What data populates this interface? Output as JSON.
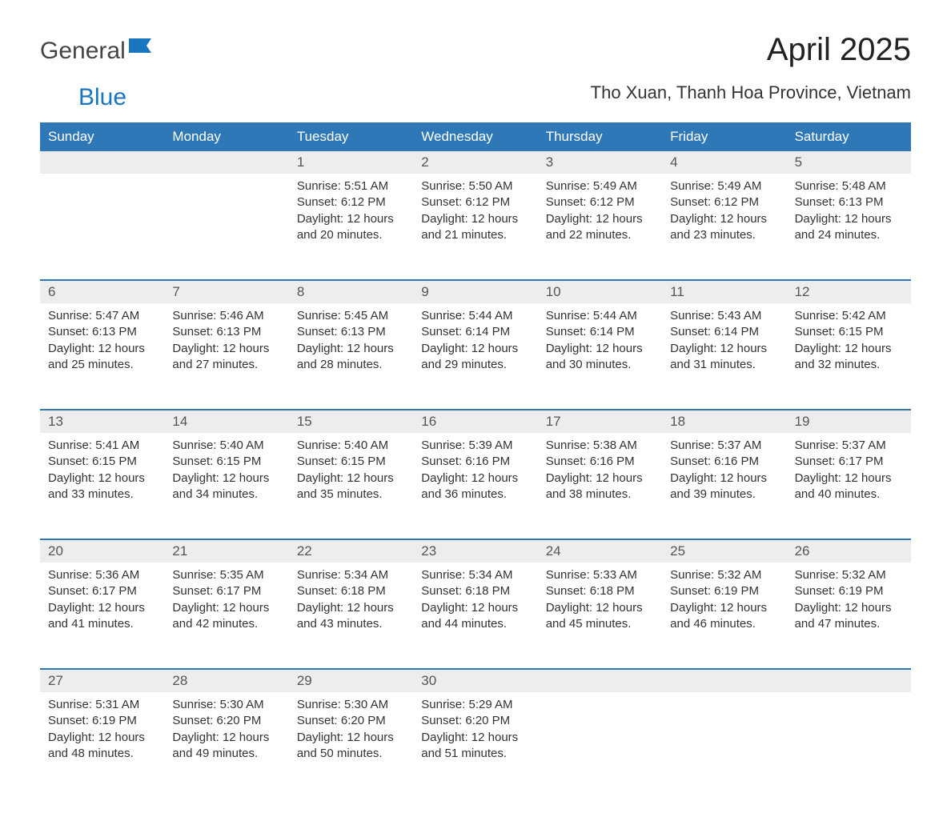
{
  "brand": {
    "name_part1": "General",
    "name_part2": "Blue",
    "text_color": "#444444",
    "accent_color": "#1976c1"
  },
  "title": "April 2025",
  "location": "Tho Xuan, Thanh Hoa Province, Vietnam",
  "colors": {
    "header_bg": "#2f78b7",
    "header_text": "#ffffff",
    "daynum_bg": "#ededed",
    "daynum_text": "#555555",
    "body_text": "#333333",
    "week_border": "#2f78b7",
    "page_bg": "#ffffff"
  },
  "typography": {
    "title_fontsize": 40,
    "location_fontsize": 22,
    "weekday_fontsize": 17,
    "daynum_fontsize": 17,
    "body_fontsize": 15
  },
  "layout": {
    "columns": 7,
    "rows": 5
  },
  "weekdays": [
    "Sunday",
    "Monday",
    "Tuesday",
    "Wednesday",
    "Thursday",
    "Friday",
    "Saturday"
  ],
  "weeks": [
    [
      null,
      null,
      {
        "n": "1",
        "sunrise": "Sunrise: 5:51 AM",
        "sunset": "Sunset: 6:12 PM",
        "day1": "Daylight: 12 hours",
        "day2": "and 20 minutes."
      },
      {
        "n": "2",
        "sunrise": "Sunrise: 5:50 AM",
        "sunset": "Sunset: 6:12 PM",
        "day1": "Daylight: 12 hours",
        "day2": "and 21 minutes."
      },
      {
        "n": "3",
        "sunrise": "Sunrise: 5:49 AM",
        "sunset": "Sunset: 6:12 PM",
        "day1": "Daylight: 12 hours",
        "day2": "and 22 minutes."
      },
      {
        "n": "4",
        "sunrise": "Sunrise: 5:49 AM",
        "sunset": "Sunset: 6:12 PM",
        "day1": "Daylight: 12 hours",
        "day2": "and 23 minutes."
      },
      {
        "n": "5",
        "sunrise": "Sunrise: 5:48 AM",
        "sunset": "Sunset: 6:13 PM",
        "day1": "Daylight: 12 hours",
        "day2": "and 24 minutes."
      }
    ],
    [
      {
        "n": "6",
        "sunrise": "Sunrise: 5:47 AM",
        "sunset": "Sunset: 6:13 PM",
        "day1": "Daylight: 12 hours",
        "day2": "and 25 minutes."
      },
      {
        "n": "7",
        "sunrise": "Sunrise: 5:46 AM",
        "sunset": "Sunset: 6:13 PM",
        "day1": "Daylight: 12 hours",
        "day2": "and 27 minutes."
      },
      {
        "n": "8",
        "sunrise": "Sunrise: 5:45 AM",
        "sunset": "Sunset: 6:13 PM",
        "day1": "Daylight: 12 hours",
        "day2": "and 28 minutes."
      },
      {
        "n": "9",
        "sunrise": "Sunrise: 5:44 AM",
        "sunset": "Sunset: 6:14 PM",
        "day1": "Daylight: 12 hours",
        "day2": "and 29 minutes."
      },
      {
        "n": "10",
        "sunrise": "Sunrise: 5:44 AM",
        "sunset": "Sunset: 6:14 PM",
        "day1": "Daylight: 12 hours",
        "day2": "and 30 minutes."
      },
      {
        "n": "11",
        "sunrise": "Sunrise: 5:43 AM",
        "sunset": "Sunset: 6:14 PM",
        "day1": "Daylight: 12 hours",
        "day2": "and 31 minutes."
      },
      {
        "n": "12",
        "sunrise": "Sunrise: 5:42 AM",
        "sunset": "Sunset: 6:15 PM",
        "day1": "Daylight: 12 hours",
        "day2": "and 32 minutes."
      }
    ],
    [
      {
        "n": "13",
        "sunrise": "Sunrise: 5:41 AM",
        "sunset": "Sunset: 6:15 PM",
        "day1": "Daylight: 12 hours",
        "day2": "and 33 minutes."
      },
      {
        "n": "14",
        "sunrise": "Sunrise: 5:40 AM",
        "sunset": "Sunset: 6:15 PM",
        "day1": "Daylight: 12 hours",
        "day2": "and 34 minutes."
      },
      {
        "n": "15",
        "sunrise": "Sunrise: 5:40 AM",
        "sunset": "Sunset: 6:15 PM",
        "day1": "Daylight: 12 hours",
        "day2": "and 35 minutes."
      },
      {
        "n": "16",
        "sunrise": "Sunrise: 5:39 AM",
        "sunset": "Sunset: 6:16 PM",
        "day1": "Daylight: 12 hours",
        "day2": "and 36 minutes."
      },
      {
        "n": "17",
        "sunrise": "Sunrise: 5:38 AM",
        "sunset": "Sunset: 6:16 PM",
        "day1": "Daylight: 12 hours",
        "day2": "and 38 minutes."
      },
      {
        "n": "18",
        "sunrise": "Sunrise: 5:37 AM",
        "sunset": "Sunset: 6:16 PM",
        "day1": "Daylight: 12 hours",
        "day2": "and 39 minutes."
      },
      {
        "n": "19",
        "sunrise": "Sunrise: 5:37 AM",
        "sunset": "Sunset: 6:17 PM",
        "day1": "Daylight: 12 hours",
        "day2": "and 40 minutes."
      }
    ],
    [
      {
        "n": "20",
        "sunrise": "Sunrise: 5:36 AM",
        "sunset": "Sunset: 6:17 PM",
        "day1": "Daylight: 12 hours",
        "day2": "and 41 minutes."
      },
      {
        "n": "21",
        "sunrise": "Sunrise: 5:35 AM",
        "sunset": "Sunset: 6:17 PM",
        "day1": "Daylight: 12 hours",
        "day2": "and 42 minutes."
      },
      {
        "n": "22",
        "sunrise": "Sunrise: 5:34 AM",
        "sunset": "Sunset: 6:18 PM",
        "day1": "Daylight: 12 hours",
        "day2": "and 43 minutes."
      },
      {
        "n": "23",
        "sunrise": "Sunrise: 5:34 AM",
        "sunset": "Sunset: 6:18 PM",
        "day1": "Daylight: 12 hours",
        "day2": "and 44 minutes."
      },
      {
        "n": "24",
        "sunrise": "Sunrise: 5:33 AM",
        "sunset": "Sunset: 6:18 PM",
        "day1": "Daylight: 12 hours",
        "day2": "and 45 minutes."
      },
      {
        "n": "25",
        "sunrise": "Sunrise: 5:32 AM",
        "sunset": "Sunset: 6:19 PM",
        "day1": "Daylight: 12 hours",
        "day2": "and 46 minutes."
      },
      {
        "n": "26",
        "sunrise": "Sunrise: 5:32 AM",
        "sunset": "Sunset: 6:19 PM",
        "day1": "Daylight: 12 hours",
        "day2": "and 47 minutes."
      }
    ],
    [
      {
        "n": "27",
        "sunrise": "Sunrise: 5:31 AM",
        "sunset": "Sunset: 6:19 PM",
        "day1": "Daylight: 12 hours",
        "day2": "and 48 minutes."
      },
      {
        "n": "28",
        "sunrise": "Sunrise: 5:30 AM",
        "sunset": "Sunset: 6:20 PM",
        "day1": "Daylight: 12 hours",
        "day2": "and 49 minutes."
      },
      {
        "n": "29",
        "sunrise": "Sunrise: 5:30 AM",
        "sunset": "Sunset: 6:20 PM",
        "day1": "Daylight: 12 hours",
        "day2": "and 50 minutes."
      },
      {
        "n": "30",
        "sunrise": "Sunrise: 5:29 AM",
        "sunset": "Sunset: 6:20 PM",
        "day1": "Daylight: 12 hours",
        "day2": "and 51 minutes."
      },
      null,
      null,
      null
    ]
  ]
}
